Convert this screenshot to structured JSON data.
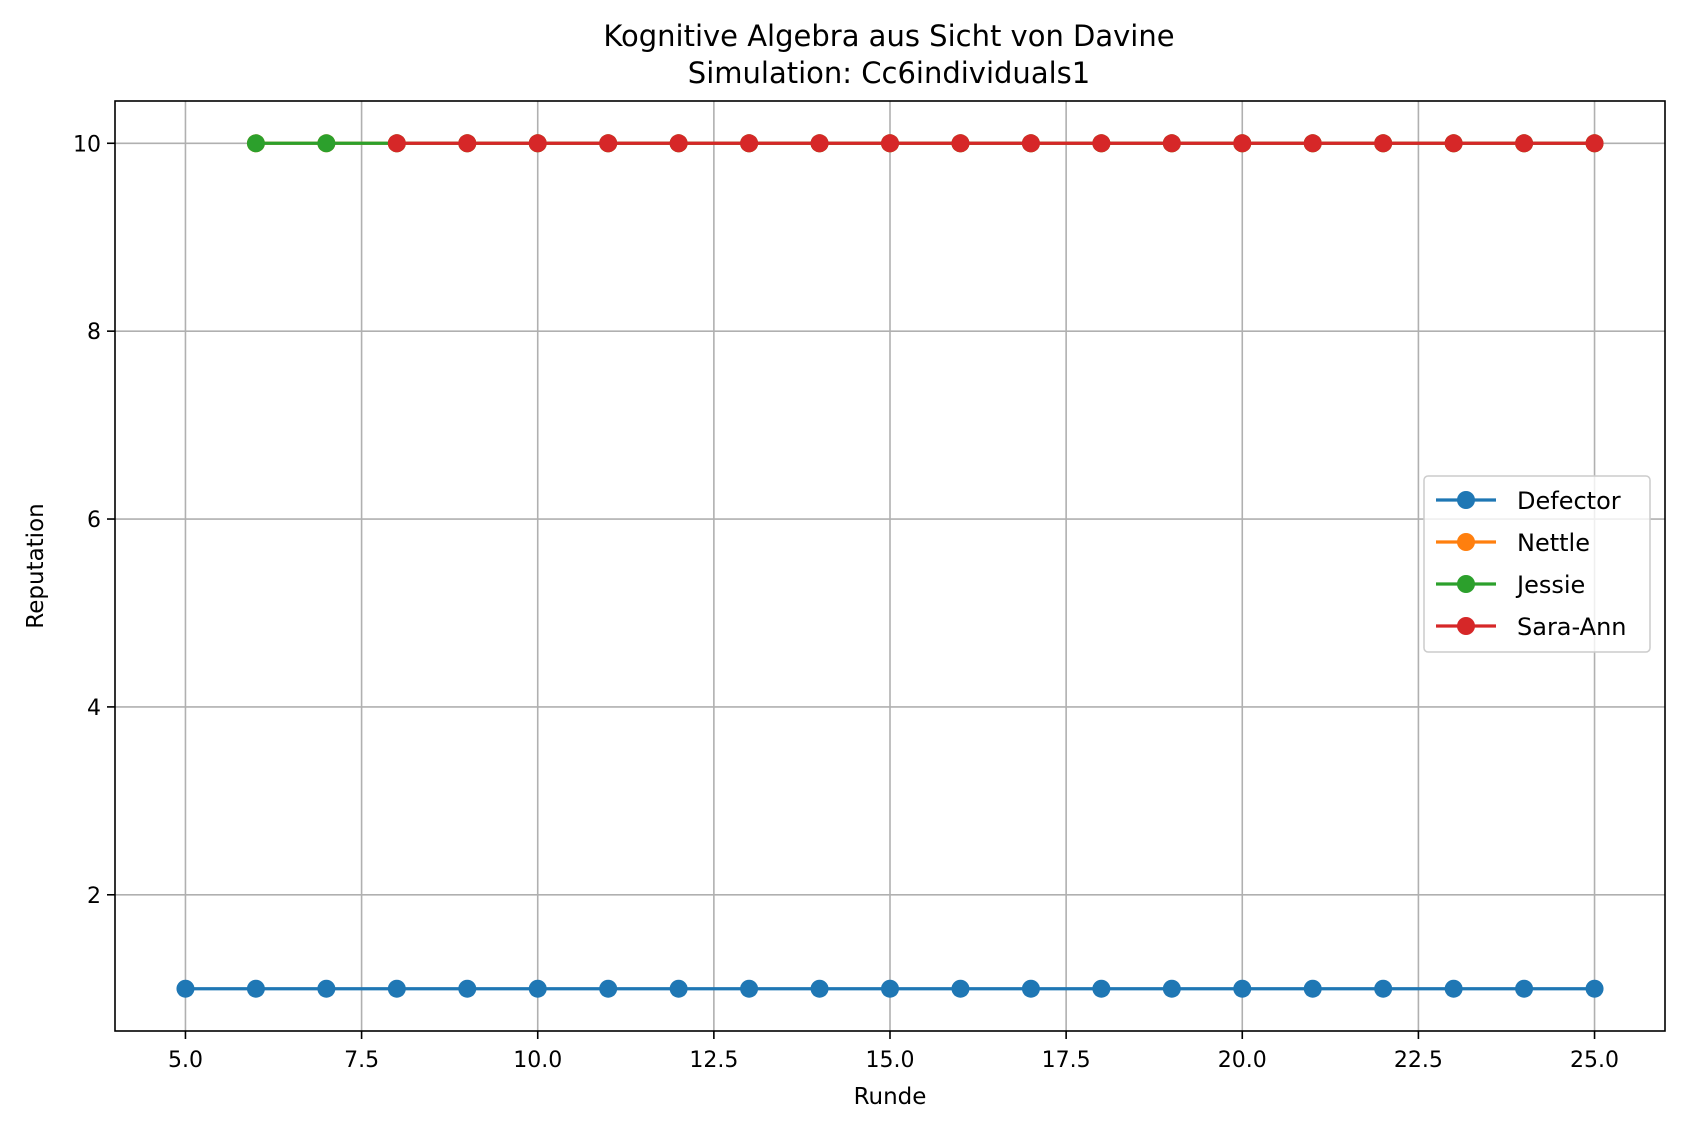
{
  "chart_data": {
    "type": "line",
    "title": "Kognitive Algebra aus Sicht von Davine",
    "subtitle": "Simulation: Cc6individuals1",
    "xlabel": "Runde",
    "ylabel": "Reputation",
    "xlim": [
      4.0,
      26.0
    ],
    "ylim": [
      0.55,
      10.45
    ],
    "xticks": [
      5.0,
      7.5,
      10.0,
      12.5,
      15.0,
      17.5,
      20.0,
      22.5,
      25.0
    ],
    "xtick_labels": [
      "5.0",
      "7.5",
      "10.0",
      "12.5",
      "15.0",
      "17.5",
      "20.0",
      "22.5",
      "25.0"
    ],
    "yticks": [
      2,
      4,
      6,
      8,
      10
    ],
    "ytick_labels": [
      "2",
      "4",
      "6",
      "8",
      "10"
    ],
    "grid": true,
    "legend_position": "center-right",
    "series": [
      {
        "name": "Defector",
        "color": "#1f77b4",
        "x": [
          5,
          6,
          7,
          8,
          9,
          10,
          11,
          12,
          13,
          14,
          15,
          16,
          17,
          18,
          19,
          20,
          21,
          22,
          23,
          24,
          25
        ],
        "y": [
          1,
          1,
          1,
          1,
          1,
          1,
          1,
          1,
          1,
          1,
          1,
          1,
          1,
          1,
          1,
          1,
          1,
          1,
          1,
          1,
          1
        ]
      },
      {
        "name": "Nettle",
        "color": "#ff7f0e",
        "x": [
          6,
          7,
          8,
          9,
          10,
          11,
          12,
          13,
          14,
          15,
          16,
          17,
          18,
          19,
          20,
          21,
          22,
          23,
          24,
          25
        ],
        "y": [
          10,
          10,
          10,
          10,
          10,
          10,
          10,
          10,
          10,
          10,
          10,
          10,
          10,
          10,
          10,
          10,
          10,
          10,
          10,
          10
        ]
      },
      {
        "name": "Jessie",
        "color": "#2ca02c",
        "x": [
          6,
          7,
          8,
          9,
          10,
          11,
          12,
          13,
          14,
          15,
          16,
          17,
          18,
          19,
          20,
          21,
          22,
          23,
          24,
          25
        ],
        "y": [
          10,
          10,
          10,
          10,
          10,
          10,
          10,
          10,
          10,
          10,
          10,
          10,
          10,
          10,
          10,
          10,
          10,
          10,
          10,
          10
        ]
      },
      {
        "name": "Sara-Ann",
        "color": "#d62728",
        "x": [
          8,
          9,
          10,
          11,
          12,
          13,
          14,
          15,
          16,
          17,
          18,
          19,
          20,
          21,
          22,
          23,
          24,
          25
        ],
        "y": [
          10,
          10,
          10,
          10,
          10,
          10,
          10,
          10,
          10,
          10,
          10,
          10,
          10,
          10,
          10,
          10,
          10,
          10
        ]
      }
    ]
  }
}
